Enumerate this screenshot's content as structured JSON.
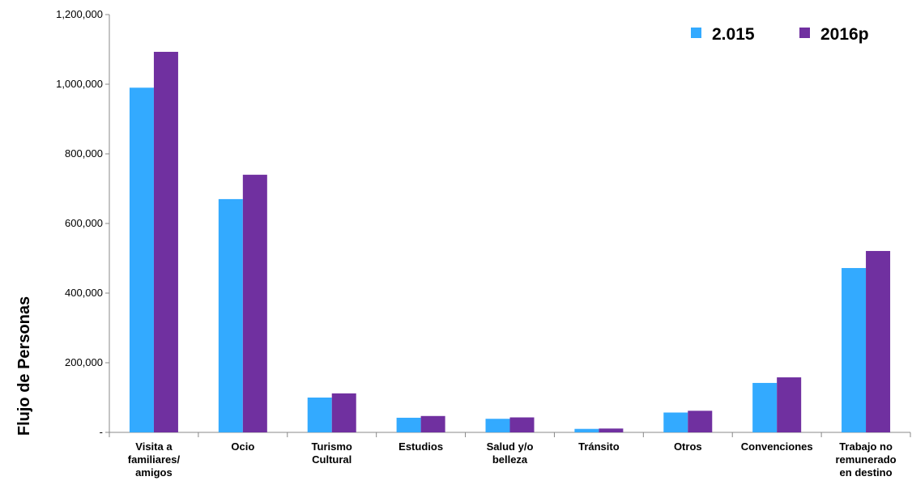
{
  "chart_data": {
    "type": "bar",
    "ylabel": "Flujo de Personas",
    "xlabel": "",
    "ylim": [
      0,
      1200000
    ],
    "yticks": [
      "-",
      "200,000",
      "400,000",
      "600,000",
      "800,000",
      "1,000,000",
      "1,200,000"
    ],
    "ytick_values": [
      0,
      200000,
      400000,
      600000,
      800000,
      1000000,
      1200000
    ],
    "categories": [
      [
        "Visita a",
        "familiares/",
        "amigos"
      ],
      [
        "Ocio"
      ],
      [
        "Turismo",
        "Cultural"
      ],
      [
        "Estudios"
      ],
      [
        "Salud y/o",
        "belleza"
      ],
      [
        "Tránsito"
      ],
      [
        "Otros"
      ],
      [
        "Convenciones"
      ],
      [
        "Trabajo no",
        "remunerado",
        "en destino"
      ]
    ],
    "series": [
      {
        "name": "2.015",
        "color": "#33AAFF",
        "values": [
          990000,
          670000,
          100000,
          42000,
          39000,
          10000,
          57000,
          142000,
          472000
        ]
      },
      {
        "name": "2016p",
        "color": "#7030A0",
        "values": [
          1093000,
          740000,
          112000,
          47000,
          43000,
          11000,
          62000,
          158000,
          521000
        ]
      }
    ],
    "legend_position": "top-right",
    "grid": false
  }
}
